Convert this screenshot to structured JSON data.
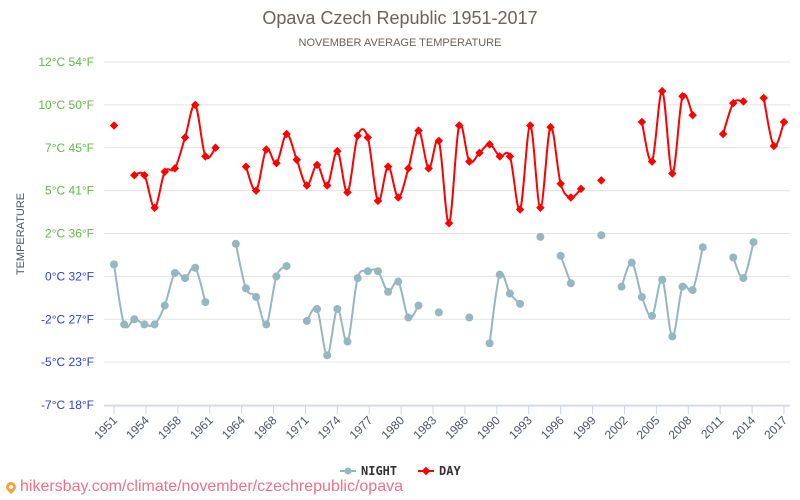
{
  "chart_data": {
    "type": "line",
    "title": "Opava Czech Republic 1951-2017",
    "subtitle": "NOVEMBER AVERAGE TEMPERATURE",
    "xlabel": "",
    "ylabel": "TEMPERATURE",
    "xlim": [
      1951,
      2017
    ],
    "ylim": [
      -7.5,
      12.5
    ],
    "grid": true,
    "legend_position": "bottom-center",
    "y_ticks": [
      {
        "value": 12.5,
        "label": "12°C 54°F",
        "color": "#5dbb46"
      },
      {
        "value": 10,
        "label": "10°C 50°F",
        "color": "#5dbb46"
      },
      {
        "value": 7.5,
        "label": "7°C 45°F",
        "color": "#5dbb46"
      },
      {
        "value": 5,
        "label": "5°C 41°F",
        "color": "#5dbb46"
      },
      {
        "value": 2.5,
        "label": "2°C 36°F",
        "color": "#5dbb46"
      },
      {
        "value": 0,
        "label": "0°C 32°F",
        "color": "#2b3fe0"
      },
      {
        "value": -2.5,
        "label": "-2°C 27°F",
        "color": "#2b3fe0"
      },
      {
        "value": -5,
        "label": "-5°C 23°F",
        "color": "#2b3fe0"
      },
      {
        "value": -7.5,
        "label": "-7°C 18°F",
        "color": "#2b3fe0"
      }
    ],
    "x_ticks": [
      "1951",
      "1954",
      "1958",
      "1961",
      "1964",
      "1968",
      "1971",
      "1974",
      "1977",
      "1980",
      "1983",
      "1986",
      "1990",
      "1993",
      "1996",
      "1999",
      "2002",
      "2005",
      "2008",
      "2011",
      "2014",
      "2017"
    ],
    "series": [
      {
        "name": "NIGHT",
        "color": "#94b7c1",
        "marker": "circle",
        "segments": [
          {
            "start": 1951,
            "values": [
              0.7,
              -2.8,
              -2.5,
              -2.8,
              -2.8,
              -1.7,
              0.2,
              -0.1,
              0.5,
              -1.5
            ]
          },
          {
            "start": 1963,
            "values": [
              1.9,
              -0.7,
              -1.2,
              -2.8,
              0.0,
              0.6
            ]
          },
          {
            "start": 1970,
            "values": [
              -2.6,
              -1.9,
              -4.6,
              -1.9,
              -3.8,
              -0.1,
              0.3,
              0.3,
              -0.9,
              -0.3,
              -2.4,
              -1.7
            ]
          },
          {
            "start": 1983,
            "values": [
              -2.1
            ]
          },
          {
            "start": 1986,
            "values": [
              -2.4
            ]
          },
          {
            "start": 1988,
            "values": [
              -3.9,
              0.1,
              -1.0,
              -1.6
            ]
          },
          {
            "start": 1993,
            "values": [
              2.3
            ]
          },
          {
            "start": 1995,
            "values": [
              1.2,
              -0.4
            ]
          },
          {
            "start": 1999,
            "values": [
              2.4
            ]
          },
          {
            "start": 2001,
            "values": [
              -0.6,
              0.8,
              -1.2,
              -2.3,
              -0.2,
              -3.5,
              -0.6,
              -0.8,
              1.7
            ]
          },
          {
            "start": 2012,
            "values": [
              1.1,
              -0.1,
              2.0
            ]
          }
        ]
      },
      {
        "name": "DAY",
        "color": "#ff0000",
        "marker": "diamond",
        "segments": [
          {
            "start": 1951,
            "values": [
              8.8
            ]
          },
          {
            "start": 1953,
            "values": [
              5.9,
              5.9,
              4.0,
              6.1,
              6.3,
              8.1,
              10.0,
              7.0,
              7.5
            ]
          },
          {
            "start": 1964,
            "values": [
              6.4,
              5.0,
              7.4,
              6.6,
              8.3,
              6.8,
              5.3,
              6.5,
              5.3,
              7.3,
              4.9,
              8.2,
              8.1,
              4.4,
              6.4,
              4.6,
              6.3,
              8.5,
              6.3,
              7.9,
              3.1,
              8.8,
              6.7,
              7.2,
              7.7,
              7.0,
              7.0,
              3.9,
              8.8,
              4.0,
              8.7,
              5.4,
              4.6,
              5.1
            ]
          },
          {
            "start": 1999,
            "values": [
              5.6
            ]
          },
          {
            "start": 2003,
            "values": [
              9.0,
              6.7,
              10.8,
              6.0,
              10.5,
              9.4
            ]
          },
          {
            "start": 2011,
            "values": [
              8.3,
              10.1,
              10.2
            ]
          },
          {
            "start": 2015,
            "values": [
              10.4,
              7.6,
              9.0
            ]
          }
        ]
      }
    ]
  },
  "source": {
    "text": "hikersbay.com/climate/november/czechrepublic/opava",
    "icon": "map-pin-icon"
  }
}
